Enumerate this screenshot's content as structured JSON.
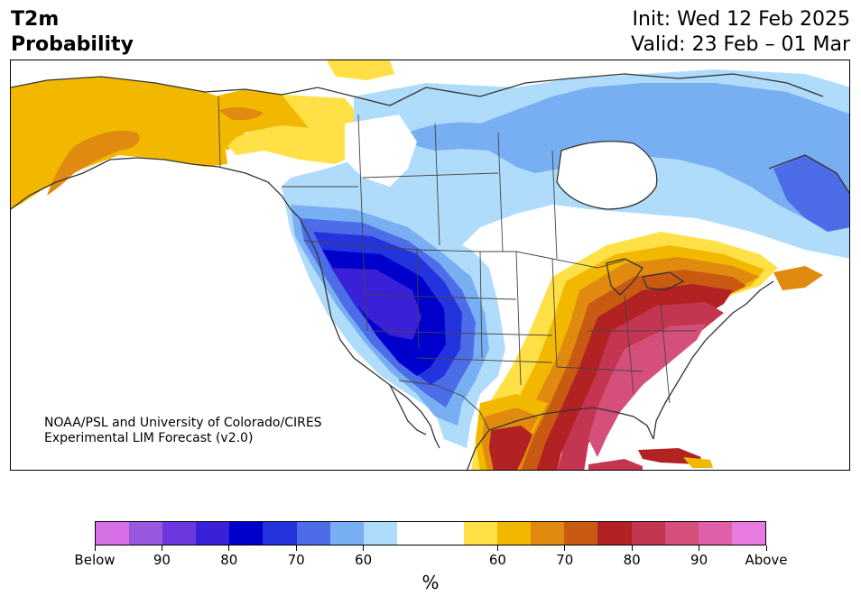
{
  "header": {
    "variable": "T2m",
    "product": "Probability",
    "init": "Init: Wed 12 Feb 2025",
    "valid": "Valid: 23 Feb – 01 Mar"
  },
  "credit": {
    "line1": "NOAA/PSL and University of Colorado/CIRES",
    "line2": "Experimental LIM Forecast (v2.0)"
  },
  "colorbar": {
    "unit": "%",
    "colors": [
      "#d66fe6",
      "#9a57df",
      "#6a38de",
      "#3a20d6",
      "#0000cc",
      "#2333dd",
      "#4c6ce8",
      "#78aef2",
      "#b0dcfb",
      "#ffffff",
      "#ffffff",
      "#ffe046",
      "#f2b800",
      "#e08a10",
      "#c85a12",
      "#b22222",
      "#c43552",
      "#d4507a",
      "#e060a8",
      "#e87ae0"
    ],
    "tick_labels": [
      {
        "label": "Below",
        "slot": 0
      },
      {
        "label": "90",
        "slot": 2
      },
      {
        "label": "80",
        "slot": 4
      },
      {
        "label": "70",
        "slot": 6
      },
      {
        "label": "60",
        "slot": 8
      },
      {
        "label": "60",
        "slot": 12
      },
      {
        "label": "70",
        "slot": 14
      },
      {
        "label": "80",
        "slot": 16
      },
      {
        "label": "90",
        "slot": 18
      },
      {
        "label": "Above",
        "slot": 20
      }
    ]
  }
}
